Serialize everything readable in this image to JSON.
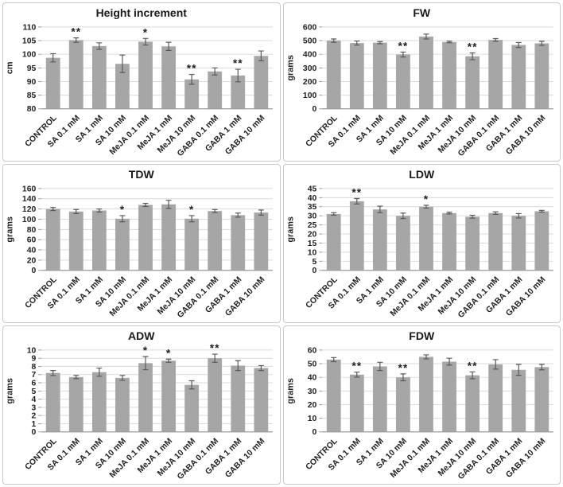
{
  "colors": {
    "bar": "#a6a6a6",
    "error_bar": "#595959",
    "gridline": "#d9d9d9",
    "axis": "#9a9a9a",
    "text": "#1f1f1f"
  },
  "chart_data": [
    {
      "type": "bar",
      "title": "Height increment",
      "ylabel": "cm",
      "ylim": [
        80,
        110
      ],
      "ytick_step": 5,
      "grid": true,
      "categories": [
        "CONTROL",
        "SA 0.1 mM",
        "SA 1 mM",
        "SA 10 mM",
        "MeJA 0.1 mM",
        "MeJA 1 mM",
        "MeJA 10 mM",
        "GABA 0.1 mM",
        "GABA 1 mM",
        "GABA 10 mM"
      ],
      "values": [
        98.7,
        105.2,
        103.0,
        96.5,
        104.6,
        102.9,
        90.8,
        93.7,
        92.2,
        99.4
      ],
      "errors": [
        1.5,
        0.8,
        1.2,
        3.2,
        1.2,
        1.5,
        1.8,
        1.3,
        2.3,
        1.8
      ],
      "significance": [
        "",
        "**",
        "",
        "",
        "*",
        "",
        "**",
        "",
        "**",
        ""
      ]
    },
    {
      "type": "bar",
      "title": "FW",
      "ylabel": "grams",
      "ylim": [
        0,
        600
      ],
      "ytick_step": 100,
      "grid": true,
      "categories": [
        "CONTROL",
        "SA 0.1 mM",
        "SA 1 mM",
        "SA 10 mM",
        "MeJA 0.1 mM",
        "MeJA 1 mM",
        "MeJA 10 mM",
        "GABA 0.1 mM",
        "GABA 1 mM",
        "GABA 10 mM"
      ],
      "values": [
        500,
        482,
        485,
        398,
        530,
        490,
        385,
        505,
        468,
        480
      ],
      "errors": [
        12,
        15,
        8,
        18,
        18,
        6,
        25,
        10,
        18,
        15
      ],
      "significance": [
        "",
        "",
        "",
        "**",
        "",
        "",
        "**",
        "",
        "",
        ""
      ]
    },
    {
      "type": "bar",
      "title": "TDW",
      "ylabel": "grams",
      "ylim": [
        0,
        160
      ],
      "ytick_step": 20,
      "grid": true,
      "categories": [
        "CONTROL",
        "SA 0.1 mM",
        "SA 1 mM",
        "SA 10 mM",
        "MeJA 0.1 mM",
        "MeJA 1 mM",
        "MeJA 10 mM",
        "GABA 0.1 mM",
        "GABA 1 mM",
        "GABA 10 mM"
      ],
      "values": [
        120,
        115,
        117,
        101,
        128,
        129,
        101,
        116,
        108,
        113
      ],
      "errors": [
        3,
        4,
        3,
        6,
        3,
        8,
        6,
        3,
        4,
        5
      ],
      "significance": [
        "",
        "",
        "",
        "*",
        "",
        "",
        "*",
        "",
        "",
        ""
      ]
    },
    {
      "type": "bar",
      "title": "LDW",
      "ylabel": "grams",
      "ylim": [
        0,
        45
      ],
      "ytick_step": 5,
      "grid": true,
      "categories": [
        "CONTROL",
        "SA 0.1 mM",
        "SA 1 mM",
        "SA 10 mM",
        "MeJA 0.1 mM",
        "MeJA 1 mM",
        "MeJA 10 mM",
        "GABA 0.1 mM",
        "GABA 1 mM",
        "GABA 10 mM"
      ],
      "values": [
        31,
        38,
        33.5,
        30,
        35,
        31.5,
        29.5,
        31.5,
        30,
        32.5
      ],
      "errors": [
        0.7,
        1.5,
        1.8,
        1.5,
        0.8,
        0.5,
        0.8,
        0.7,
        1.2,
        0.5
      ],
      "significance": [
        "",
        "**",
        "",
        "",
        "*",
        "",
        "",
        "",
        "",
        ""
      ]
    },
    {
      "type": "bar",
      "title": "ADW",
      "ylabel": "grams",
      "ylim": [
        0,
        10
      ],
      "ytick_step": 1,
      "grid": true,
      "categories": [
        "CONTROL",
        "SA 0.1 mM",
        "SA 1 mM",
        "SA 10 mM",
        "MeJA 0.1 mM",
        "MeJA 1 mM",
        "MeJA 10 mM",
        "GABA 0.1 mM",
        "GABA 1 mM",
        "GABA 10 mM"
      ],
      "values": [
        7.2,
        6.7,
        7.3,
        6.6,
        8.4,
        8.7,
        5.75,
        9.0,
        8.1,
        7.8
      ],
      "errors": [
        0.3,
        0.2,
        0.5,
        0.3,
        0.8,
        0.2,
        0.5,
        0.5,
        0.6,
        0.3
      ],
      "significance": [
        "",
        "",
        "",
        "",
        "*",
        "*",
        "",
        "**",
        "",
        ""
      ]
    },
    {
      "type": "bar",
      "title": "FDW",
      "ylabel": "grams",
      "ylim": [
        0,
        60
      ],
      "ytick_step": 10,
      "grid": true,
      "categories": [
        "CONTROL",
        "SA 0.1 mM",
        "SA 1 mM",
        "SA 10 mM",
        "MeJA 0.1 mM",
        "MeJA 1 mM",
        "MeJA 10 mM",
        "GABA 0.1 mM",
        "GABA 1 mM",
        "GABA 10 mM"
      ],
      "values": [
        53,
        42,
        48,
        40,
        55,
        51.5,
        41.5,
        49.5,
        45.5,
        47.5
      ],
      "errors": [
        1.5,
        1.8,
        3,
        2.5,
        1.5,
        2.5,
        2.5,
        3.5,
        4,
        2
      ],
      "significance": [
        "",
        "**",
        "",
        "**",
        "",
        "",
        "**",
        "",
        "",
        ""
      ]
    }
  ]
}
